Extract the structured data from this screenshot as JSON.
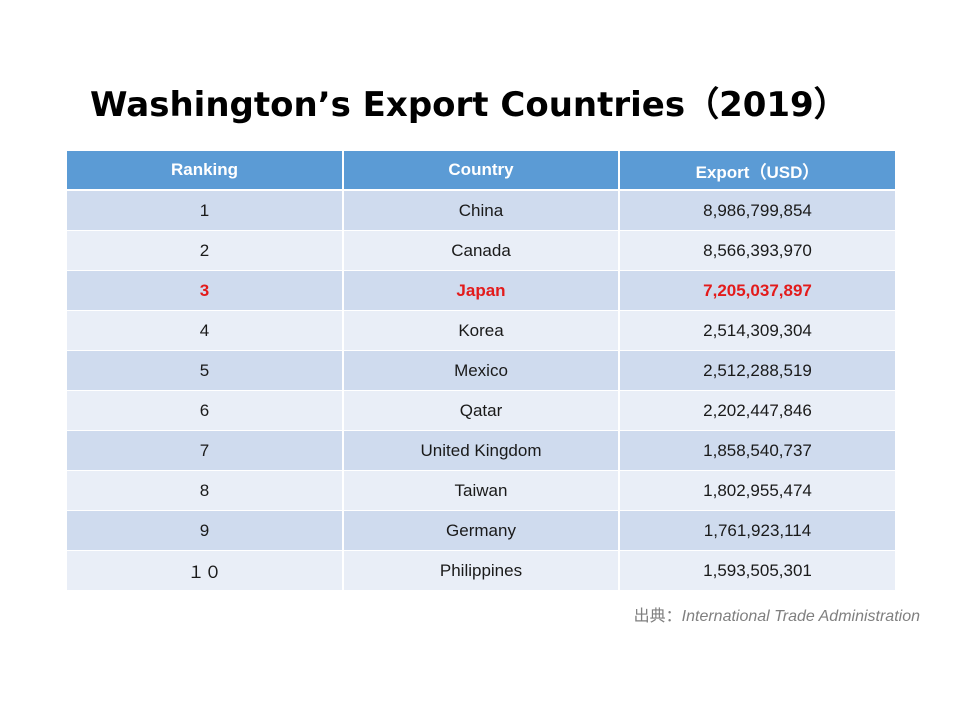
{
  "title": "Washington’s Export Countries（2019）",
  "table": {
    "headers": [
      "Ranking",
      "Country",
      "Export（USD）"
    ],
    "rows": [
      [
        "1",
        "China",
        "8,986,799,854"
      ],
      [
        "2",
        "Canada",
        "8,566,393,970"
      ],
      [
        "3",
        "Japan",
        "7,205,037,897"
      ],
      [
        "4",
        "Korea",
        "2,514,309,304"
      ],
      [
        "5",
        "Mexico",
        "2,512,288,519"
      ],
      [
        "6",
        "Qatar",
        "2,202,447,846"
      ],
      [
        "7",
        "United Kingdom",
        "1,858,540,737"
      ],
      [
        "8",
        "Taiwan",
        "1,802,955,474"
      ],
      [
        "9",
        "Germany",
        "1,761,923,114"
      ],
      [
        "１０",
        "Philippines",
        "1,593,505,301"
      ]
    ],
    "highlight_row": 2,
    "colors": {
      "header_bg": "#5b9bd5",
      "row_odd_bg": "#cfdbee",
      "row_even_bg": "#e9eef7",
      "highlight_text": "#e31b1b"
    }
  },
  "source": {
    "prefix": "出典：",
    "name": "International Trade Administration"
  }
}
